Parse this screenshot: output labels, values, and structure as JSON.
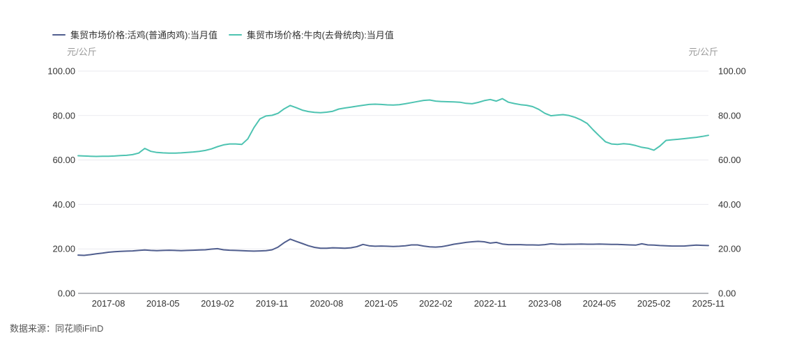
{
  "legend": [
    {
      "label": "集贸市场价格:活鸡(普通肉鸡):当月值",
      "color": "#505E8E"
    },
    {
      "label": "集贸市场价格:牛肉(去骨统肉):当月值",
      "color": "#4DC3B1"
    }
  ],
  "axis": {
    "unit_left": "元/公斤",
    "unit_right": "元/公斤"
  },
  "source": "数据来源：同花顺iFinD",
  "colors": {
    "gridline": "#EAEAEF",
    "axis_line": "#6E7079",
    "tick_text": "#333333"
  },
  "chart_data": {
    "type": "line",
    "title": "",
    "xlabel": "",
    "ylabel": "元/公斤",
    "ylim": [
      0,
      100
    ],
    "grid": true,
    "legend_position": "top-left",
    "x_unit": "month",
    "x_range_start": "2017-03",
    "x_range_end": "2025-11",
    "x_ticks": [
      {
        "index": 5,
        "label": "2017-08"
      },
      {
        "index": 14,
        "label": "2018-05"
      },
      {
        "index": 23,
        "label": "2019-02"
      },
      {
        "index": 32,
        "label": "2019-11"
      },
      {
        "index": 41,
        "label": "2020-08"
      },
      {
        "index": 50,
        "label": "2021-05"
      },
      {
        "index": 59,
        "label": "2022-02"
      },
      {
        "index": 68,
        "label": "2022-11"
      },
      {
        "index": 77,
        "label": "2023-08"
      },
      {
        "index": 86,
        "label": "2024-05"
      },
      {
        "index": 95,
        "label": "2025-02"
      },
      {
        "index": 104,
        "label": "2025-11"
      }
    ],
    "y_ticks": [
      {
        "value": 0,
        "label": "0.00"
      },
      {
        "value": 20,
        "label": "20.00"
      },
      {
        "value": 40,
        "label": "40.00"
      },
      {
        "value": 60,
        "label": "60.00"
      },
      {
        "value": 80,
        "label": "80.00"
      },
      {
        "value": 100,
        "label": "100.00"
      }
    ],
    "series": [
      {
        "name": "集贸市场价格:活鸡(普通肉鸡):当月值",
        "color": "#505E8E",
        "values": [
          17.2,
          17.1,
          17.4,
          17.8,
          18.1,
          18.5,
          18.7,
          18.9,
          19.0,
          19.1,
          19.3,
          19.5,
          19.3,
          19.2,
          19.3,
          19.4,
          19.3,
          19.2,
          19.3,
          19.4,
          19.5,
          19.6,
          19.9,
          20.1,
          19.6,
          19.4,
          19.3,
          19.2,
          19.1,
          19.0,
          19.1,
          19.2,
          19.6,
          20.8,
          22.8,
          24.4,
          23.4,
          22.4,
          21.4,
          20.7,
          20.3,
          20.3,
          20.5,
          20.4,
          20.3,
          20.5,
          21.0,
          22.0,
          21.4,
          21.2,
          21.3,
          21.2,
          21.1,
          21.2,
          21.4,
          21.8,
          21.8,
          21.3,
          20.9,
          20.8,
          21.0,
          21.5,
          22.1,
          22.5,
          22.9,
          23.2,
          23.4,
          23.2,
          22.6,
          22.9,
          22.2,
          21.9,
          21.9,
          21.9,
          21.8,
          21.8,
          21.7,
          21.9,
          22.3,
          22.1,
          22.0,
          22.1,
          22.1,
          22.2,
          22.1,
          22.1,
          22.2,
          22.1,
          22.0,
          22.0,
          21.9,
          21.8,
          21.7,
          22.3,
          21.8,
          21.7,
          21.5,
          21.4,
          21.3,
          21.3,
          21.3,
          21.5,
          21.7,
          21.6,
          21.5
        ]
      },
      {
        "name": "集贸市场价格:牛肉(去骨统肉):当月值",
        "color": "#4DC3B1",
        "values": [
          61.9,
          61.8,
          61.7,
          61.6,
          61.7,
          61.7,
          61.8,
          62.0,
          62.1,
          62.4,
          63.1,
          65.2,
          63.9,
          63.4,
          63.2,
          63.1,
          63.1,
          63.2,
          63.4,
          63.6,
          63.9,
          64.3,
          65.0,
          66.0,
          66.8,
          67.2,
          67.2,
          67.0,
          69.5,
          74.5,
          78.5,
          79.8,
          80.1,
          81.0,
          83.0,
          84.5,
          83.5,
          82.4,
          81.8,
          81.4,
          81.3,
          81.5,
          81.9,
          82.9,
          83.4,
          83.8,
          84.2,
          84.6,
          85.0,
          85.1,
          85.0,
          84.8,
          84.7,
          84.9,
          85.3,
          85.8,
          86.3,
          86.8,
          87.0,
          86.5,
          86.3,
          86.2,
          86.1,
          86.0,
          85.5,
          85.3,
          85.9,
          86.7,
          87.2,
          86.5,
          87.6,
          86.0,
          85.4,
          84.9,
          84.6,
          84.0,
          82.8,
          81.0,
          79.9,
          80.2,
          80.4,
          80.0,
          79.2,
          78.0,
          76.4,
          73.5,
          70.8,
          68.2,
          67.2,
          67.0,
          67.3,
          67.1,
          66.5,
          65.7,
          65.3,
          64.4,
          66.3,
          68.8,
          69.1,
          69.3,
          69.6,
          69.9,
          70.2,
          70.6,
          71.1
        ]
      }
    ]
  }
}
